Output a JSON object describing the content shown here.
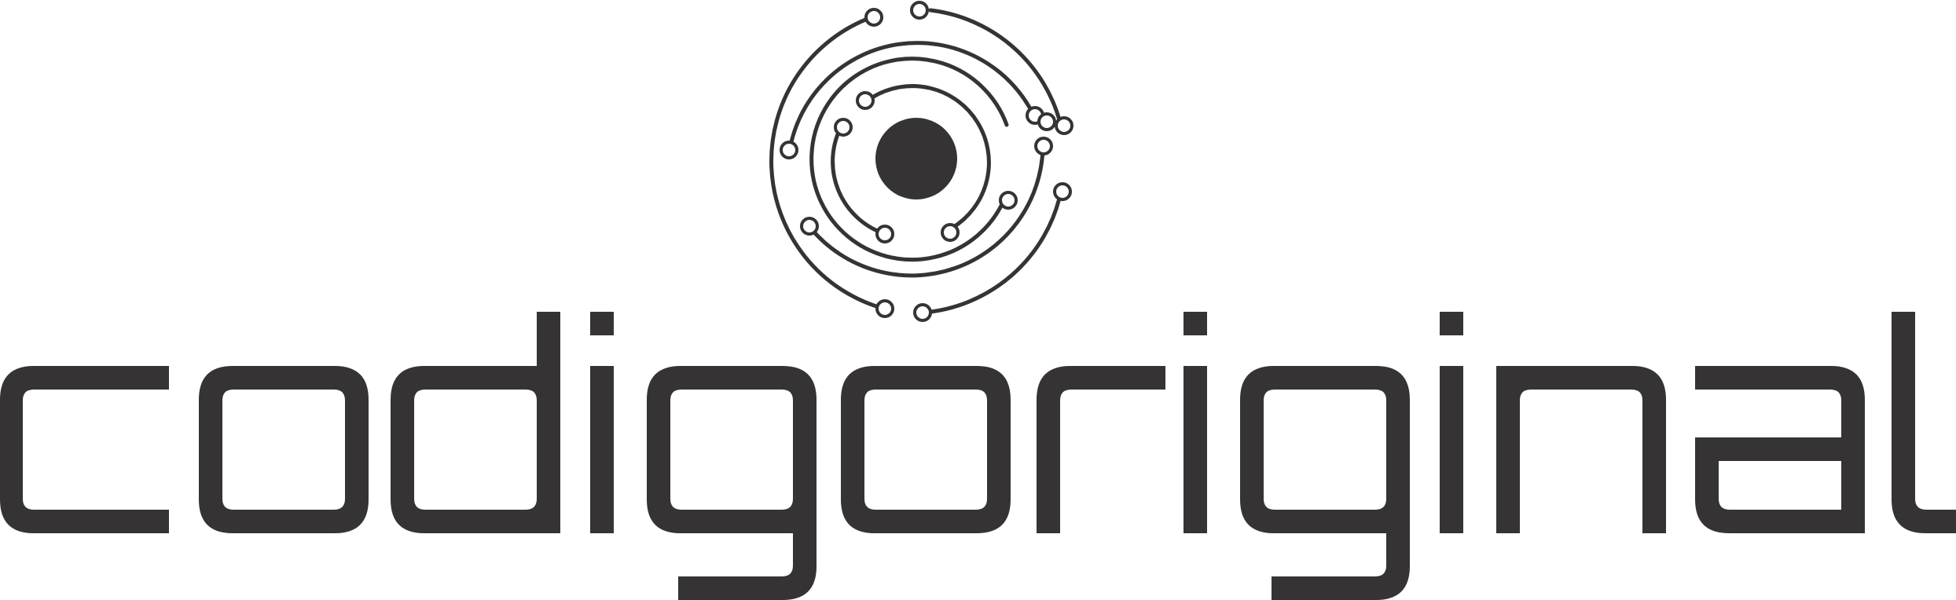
{
  "logo": {
    "wordmark": "codigoriginal",
    "emblem": "circuit-eye-icon"
  },
  "colors": {
    "ink": "#353333",
    "background": "#ffffff"
  }
}
